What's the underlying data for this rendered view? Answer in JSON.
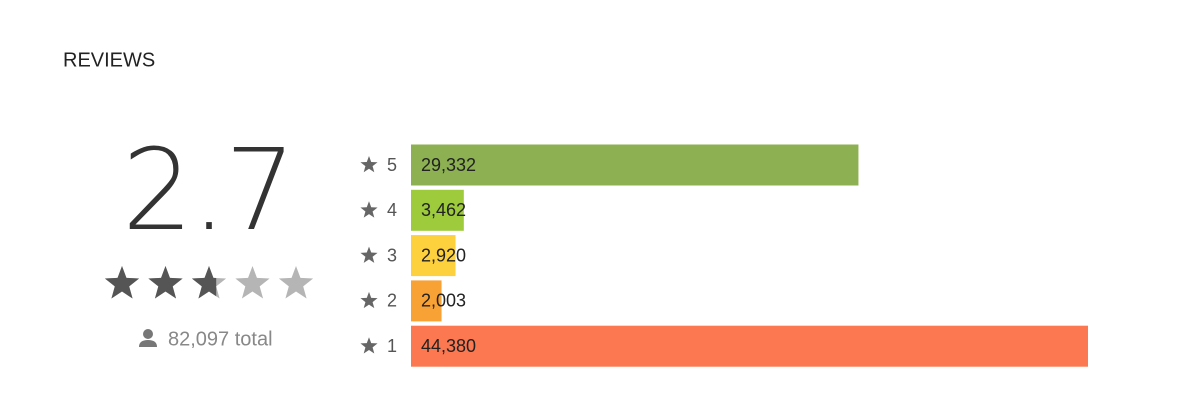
{
  "header": {
    "title": "REVIEWS"
  },
  "summary": {
    "score": 2.7,
    "max_stars": 5,
    "total": "82,097 total"
  },
  "ratings": [
    {
      "stars": "5",
      "count": 29332,
      "count_label": "29,332",
      "color": "#8db152"
    },
    {
      "stars": "4",
      "count": 3462,
      "count_label": "3,462",
      "color": "#9dcb3c"
    },
    {
      "stars": "3",
      "count": 2920,
      "count_label": "2,920",
      "color": "#fdd03e"
    },
    {
      "stars": "2",
      "count": 2003,
      "count_label": "2,003",
      "color": "#f8a135"
    },
    {
      "stars": "1",
      "count": 44380,
      "count_label": "44,380",
      "color": "#fc7850"
    }
  ]
}
